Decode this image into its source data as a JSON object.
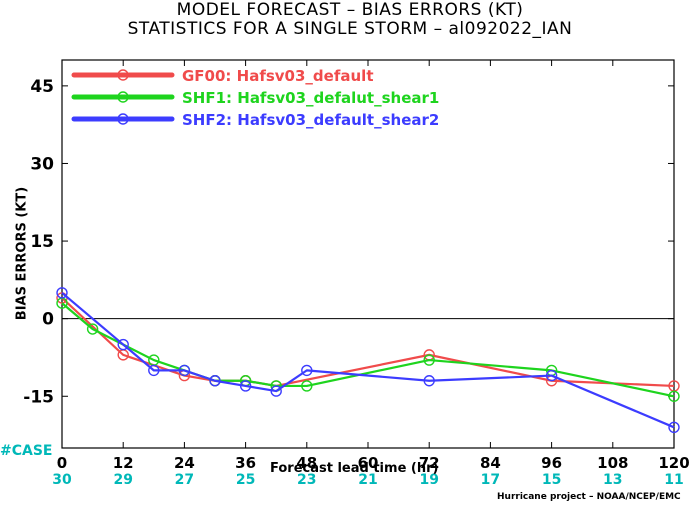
{
  "titles": {
    "line1": "MODEL FORECAST – BIAS ERRORS (KT)",
    "line2": "STATISTICS FOR A SINGLE STORM – al092022_IAN"
  },
  "case_label": "#CASE",
  "credit": "Hurricane project – NOAA/NCEP/EMC",
  "chart_data": {
    "type": "line",
    "xlabel": "Forecast lead time (hr)",
    "ylabel": "BIAS ERRORS (KT)",
    "xlim": [
      0,
      120
    ],
    "ylim": [
      -25,
      50
    ],
    "x_ticks": [
      0,
      12,
      24,
      36,
      48,
      60,
      72,
      84,
      96,
      108,
      120
    ],
    "y_ticks": [
      -15,
      0,
      15,
      30,
      45
    ],
    "zero_line": true,
    "legend_position": "top-left",
    "series": [
      {
        "name": "GF00: Hafsv03_default",
        "color": "#f04b4b",
        "x": [
          0,
          12,
          24,
          30,
          36,
          42,
          72,
          96,
          120
        ],
        "y": [
          4,
          -7,
          -11,
          -12,
          -12,
          -13,
          -7,
          -12,
          -13
        ]
      },
      {
        "name": "SHF1: Hafsv03_defalut_shear1",
        "color": "#1ed41e",
        "x": [
          0,
          6,
          18,
          24,
          30,
          36,
          42,
          48,
          72,
          96,
          120
        ],
        "y": [
          3,
          -2,
          -8,
          -10,
          -12,
          -12,
          -13,
          -13,
          -8,
          -10,
          -15
        ]
      },
      {
        "name": "SHF2: Hafsv03_default_shear2",
        "color": "#3c3cff",
        "x": [
          0,
          12,
          18,
          24,
          30,
          36,
          42,
          48,
          72,
          96,
          120
        ],
        "y": [
          5,
          -5,
          -10,
          -10,
          -12,
          -13,
          -14,
          -10,
          -12,
          -11,
          -21
        ]
      }
    ],
    "case_counts": [
      30,
      29,
      27,
      25,
      23,
      21,
      19,
      17,
      15,
      13,
      11
    ],
    "case_color": "#00b8b8"
  }
}
